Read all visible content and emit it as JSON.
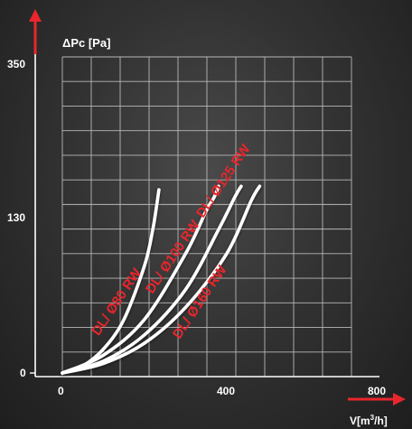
{
  "chart_data": {
    "type": "line",
    "ylabel": "ΔPc [Pa]",
    "xlabel_base": "V[m",
    "xlabel_sup": "3",
    "xlabel_tail": "/h]",
    "x_ticks": [
      "0",
      "400",
      "800"
    ],
    "y_ticks": [
      "0",
      "130",
      "350"
    ],
    "x_tick_values": [
      0,
      400,
      800
    ],
    "y_tick_values": [
      0,
      130,
      350
    ],
    "xlim": [
      0,
      800
    ],
    "ylim": [
      0,
      350
    ],
    "grid": true,
    "colors": {
      "curve": "#ffffff",
      "label": "#e8262c",
      "axis_arrow": "#e8262c",
      "grid": "#b8b8b8"
    },
    "series": [
      {
        "name": "DL/ Ø80 RW",
        "x": [
          0,
          50,
          100,
          150,
          200,
          220,
          230,
          235
        ],
        "y": [
          0,
          6,
          20,
          45,
          90,
          120,
          150,
          170
        ]
      },
      {
        "name": "DL/ Ø100 RW",
        "x": [
          0,
          100,
          200,
          300,
          350,
          370,
          380
        ],
        "y": [
          0,
          15,
          45,
          100,
          140,
          160,
          175
        ]
      },
      {
        "name": "DL/ Ø125 RW",
        "x": [
          0,
          100,
          200,
          300,
          380,
          420,
          435
        ],
        "y": [
          0,
          10,
          32,
          70,
          120,
          160,
          175
        ]
      },
      {
        "name": "DL/ Ø160 RW",
        "x": [
          0,
          100,
          200,
          300,
          400,
          460,
          480
        ],
        "y": [
          0,
          8,
          25,
          55,
          100,
          155,
          175
        ]
      }
    ]
  }
}
